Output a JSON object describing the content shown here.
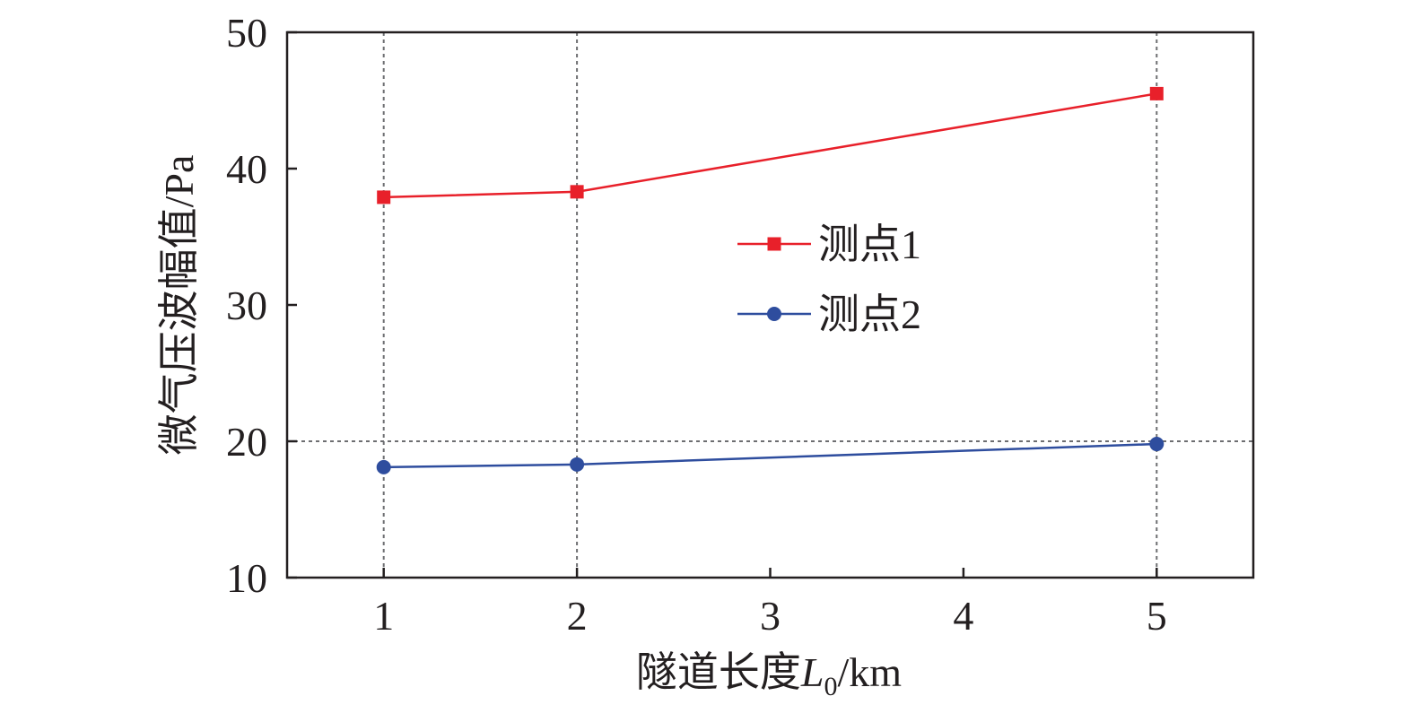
{
  "chart_data": {
    "type": "line",
    "title": "",
    "xlabel": "隧道长度",
    "xlabel_var": "L",
    "xlabel_sub": "0",
    "xlabel_unit": "/km",
    "ylabel": "微气压波幅值/Pa",
    "xlim": [
      0.5,
      5.5
    ],
    "ylim": [
      10,
      50
    ],
    "xticks": [
      1,
      2,
      3,
      4,
      5
    ],
    "yticks": [
      10,
      20,
      30,
      40,
      50
    ],
    "grid_x": [
      1,
      2,
      5
    ],
    "grid_y": [
      20
    ],
    "legend_position": "center",
    "series": [
      {
        "name": "测点1",
        "marker": "square",
        "color": "#e8202a",
        "x": [
          1,
          2,
          5
        ],
        "y": [
          37.9,
          38.3,
          45.5
        ]
      },
      {
        "name": "测点2",
        "marker": "circle",
        "color": "#2e4d9e",
        "x": [
          1,
          2,
          5
        ],
        "y": [
          18.1,
          18.3,
          19.8
        ]
      }
    ]
  }
}
